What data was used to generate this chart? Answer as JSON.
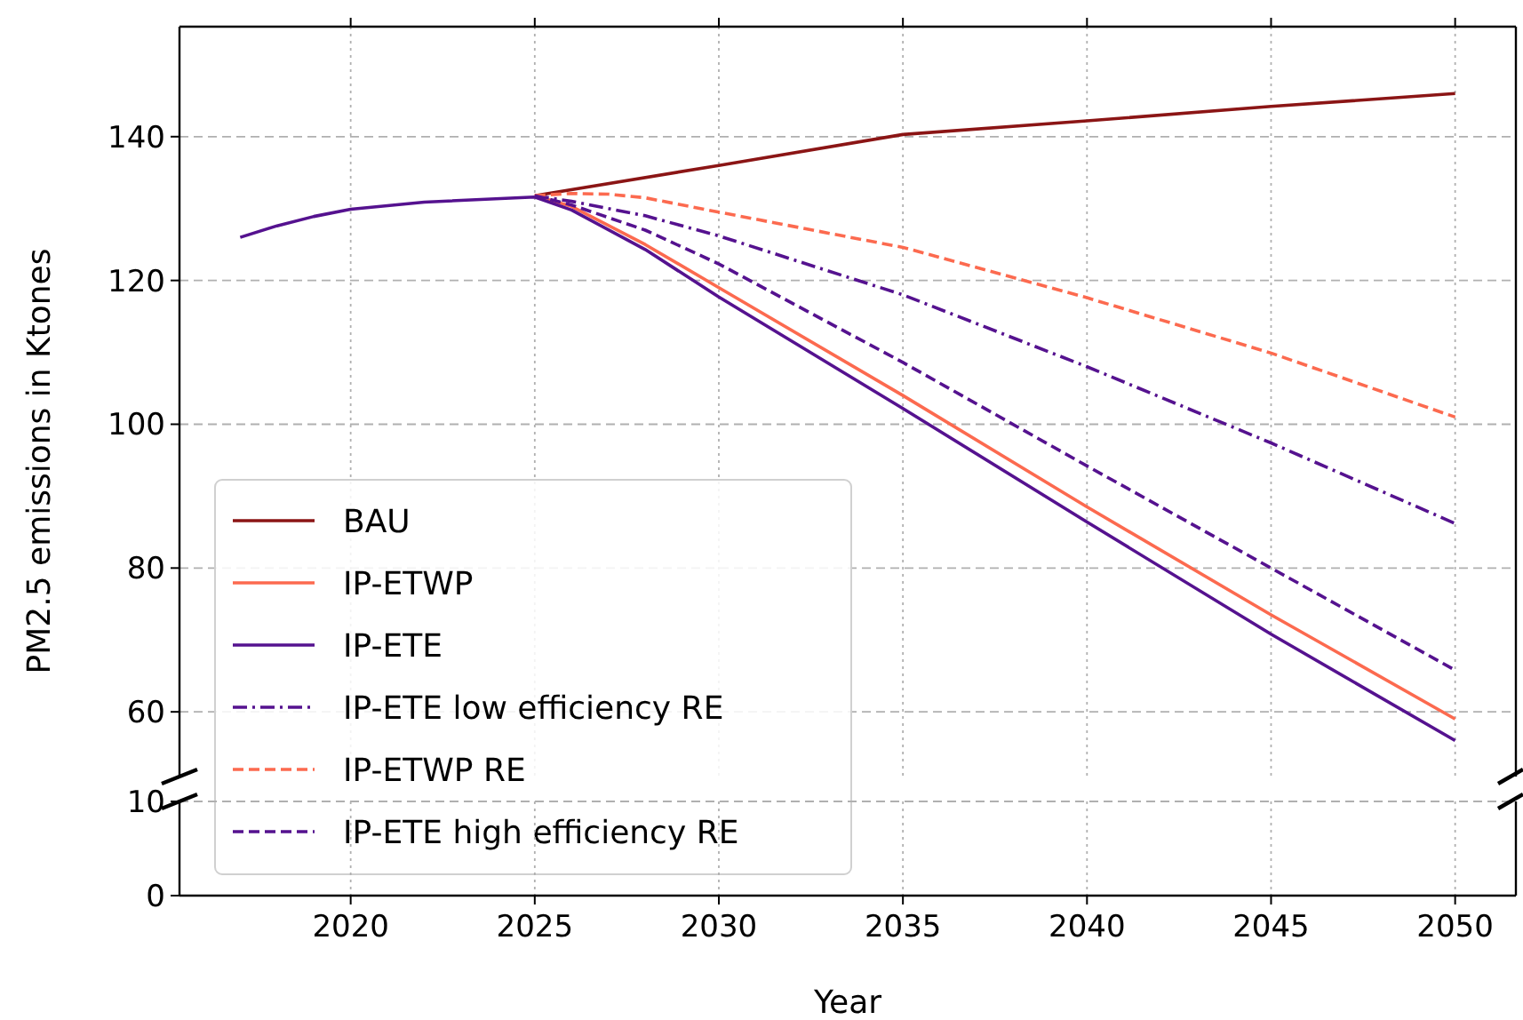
{
  "chart_data": [
    {
      "type": "line",
      "ylabel": "PM2.5 emissions in Ktones",
      "xlim": [
        2015.35,
        2051.65
      ],
      "xticks": [
        2020,
        2025,
        2030,
        2035,
        2040,
        2045,
        2050
      ],
      "ylim": [
        51,
        155.3
      ],
      "yticks": [
        60,
        80,
        100,
        120,
        140
      ],
      "tick_labels": "y",
      "grid": true,
      "legend": "bottom left",
      "series": [
        {
          "name": "BAU",
          "color": "#8b1515",
          "line_style": "solid",
          "x": [
            2025,
            2030,
            2035,
            2040,
            2045,
            2050
          ],
          "values": [
            131.8,
            136,
            140.3,
            142.2,
            144.2,
            146
          ]
        },
        {
          "name": "IP-ETWP",
          "color": "#fc6a4f",
          "line_style": "solid",
          "x": [
            2025,
            2026,
            2028,
            2030,
            2035,
            2040,
            2045,
            2050
          ],
          "values": [
            131.8,
            130.3,
            125,
            119,
            104,
            88.5,
            73.5,
            59
          ]
        },
        {
          "name": "IP-ETE",
          "color": "#55128f",
          "line_style": "solid",
          "x": [
            2017,
            2018,
            2019,
            2020,
            2022,
            2025,
            2026,
            2028,
            2030,
            2035,
            2040,
            2045,
            2050
          ],
          "values": [
            126,
            127.6,
            128.9,
            129.9,
            130.9,
            131.6,
            129.8,
            124.3,
            117.7,
            102.2,
            86.4,
            70.8,
            56
          ]
        },
        {
          "name": "IP-ETE low efficiency RE",
          "color": "#55128f",
          "line_style": "dashdot",
          "x": [
            2025,
            2026,
            2028,
            2030,
            2035,
            2040,
            2045,
            2050
          ],
          "values": [
            131.8,
            131,
            129,
            126.2,
            118,
            108,
            97.4,
            86.2
          ]
        },
        {
          "name": "IP-ETWP RE",
          "color": "#fc6a4f",
          "line_style": "dashed",
          "x": [
            2025,
            2026,
            2027,
            2028,
            2030,
            2035,
            2040,
            2045,
            2050
          ],
          "values": [
            131.8,
            132.1,
            132,
            131.5,
            129.5,
            124.6,
            117.6,
            109.9,
            101
          ]
        },
        {
          "name": "IP-ETE high efficiency RE",
          "color": "#55128f",
          "line_style": "dashed",
          "x": [
            2025,
            2026,
            2028,
            2030,
            2035,
            2040,
            2045,
            2050
          ],
          "values": [
            131.8,
            130.5,
            127,
            122.3,
            108.6,
            94.2,
            80,
            65.8
          ]
        }
      ]
    },
    {
      "type": "line",
      "xlabel": "Year",
      "xlim": [
        2015.35,
        2051.65
      ],
      "xticks": [
        2020,
        2025,
        2030,
        2035,
        2040,
        2045,
        2050
      ],
      "ylim": [
        0,
        10
      ],
      "yticks": [
        0,
        10
      ],
      "grid": true
    }
  ]
}
